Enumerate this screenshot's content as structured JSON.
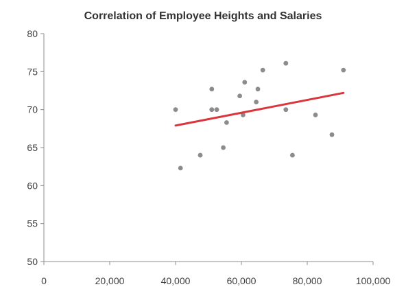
{
  "chart_data": {
    "type": "scatter",
    "title": "Correlation of Employee Heights and Salaries",
    "xlabel": "",
    "ylabel": "",
    "xlim": [
      0,
      100000
    ],
    "ylim": [
      50,
      80
    ],
    "x_ticks": [
      0,
      20000,
      40000,
      60000,
      80000,
      100000
    ],
    "x_tick_labels": [
      "0",
      "20,000",
      "40,000",
      "60,000",
      "80,000",
      "100,000"
    ],
    "y_ticks": [
      50,
      55,
      60,
      65,
      70,
      75,
      80
    ],
    "y_tick_labels": [
      "50",
      "55",
      "60",
      "65",
      "70",
      "75",
      "80"
    ],
    "grid": false,
    "legend": "none",
    "point_color": "#8c8c8c",
    "series": [
      {
        "points": [
          {
            "x": 40000,
            "y": 70
          },
          {
            "x": 41500,
            "y": 62.3
          },
          {
            "x": 47500,
            "y": 64
          },
          {
            "x": 51000,
            "y": 72.7
          },
          {
            "x": 51000,
            "y": 70
          },
          {
            "x": 52500,
            "y": 70
          },
          {
            "x": 54500,
            "y": 65
          },
          {
            "x": 55500,
            "y": 68.3
          },
          {
            "x": 59500,
            "y": 71.8
          },
          {
            "x": 60500,
            "y": 69.3
          },
          {
            "x": 61000,
            "y": 73.6
          },
          {
            "x": 64500,
            "y": 71
          },
          {
            "x": 65000,
            "y": 72.7
          },
          {
            "x": 66500,
            "y": 75.2
          },
          {
            "x": 73500,
            "y": 76.1
          },
          {
            "x": 73500,
            "y": 70
          },
          {
            "x": 75500,
            "y": 64
          },
          {
            "x": 82500,
            "y": 69.3
          },
          {
            "x": 87500,
            "y": 66.7
          },
          {
            "x": 91000,
            "y": 75.2
          }
        ]
      }
    ],
    "trendline": {
      "color": "#d9363e",
      "x": [
        40000,
        91000
      ],
      "y": [
        67.9,
        72.2
      ]
    }
  }
}
